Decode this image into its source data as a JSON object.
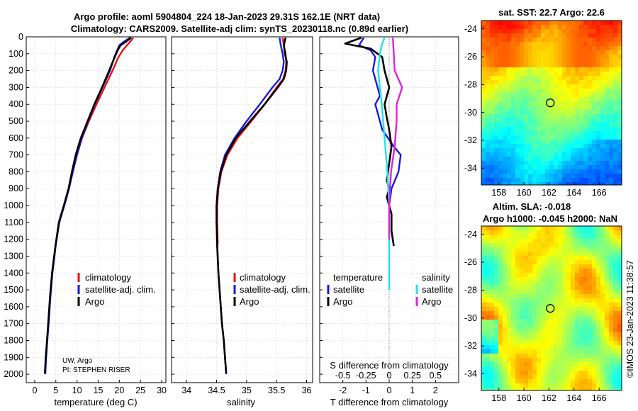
{
  "title": {
    "line1": "Argo profile: aoml 5904804_224 18-Jan-2023 29.31S 162.1E (NRT data)",
    "line2": "Climatology: CARS2009. Satellite-adj clim: synTS_20230118.nc (0.89d earlier)"
  },
  "credit": {
    "org": "UW, Argo",
    "pi": "PI: STEPHEN RISER"
  },
  "watermark": "©IMOS 23-Jan-2023 11:38:57",
  "colors": {
    "climatology": "#e81010",
    "satellite": "#1818dd",
    "argo": "#000000",
    "cyan": "#22e0e8",
    "magenta": "#e020e0"
  },
  "chart_data": [
    {
      "id": "temperature",
      "type": "line",
      "xlabel": "temperature (deg C)",
      "ylabel": "",
      "xlim": [
        -2,
        31
      ],
      "ylim": [
        2050,
        0
      ],
      "xticks": [
        0,
        5,
        10,
        15,
        20,
        25,
        30
      ],
      "yticks": [
        0,
        100,
        200,
        300,
        400,
        500,
        600,
        700,
        800,
        900,
        1000,
        1100,
        1200,
        1300,
        1400,
        1500,
        1600,
        1700,
        1800,
        1900,
        2000
      ],
      "legend": [
        "climatology",
        "satellite-adj. clim.",
        "Argo"
      ],
      "series": [
        {
          "name": "climatology",
          "color": "#e81010",
          "x": [
            23.3,
            22.5,
            21.8,
            20.8,
            19.8,
            18.4,
            16.5,
            14.6,
            12.8,
            11.2,
            10.0,
            9.0,
            8.1,
            7.0,
            5.8,
            5.0
          ],
          "y": [
            5,
            30,
            50,
            80,
            120,
            200,
            300,
            400,
            500,
            600,
            700,
            800,
            900,
            1000,
            1100,
            1230
          ]
        },
        {
          "name": "satellite-adj. clim.",
          "color": "#1818dd",
          "x": [
            22.5,
            21.0,
            20.0,
            19.5,
            18.8,
            17.8,
            16.0,
            14.2,
            12.6,
            11.1,
            10.0,
            9.0,
            8.1,
            7.0,
            5.8,
            5.0,
            4.2,
            3.7,
            3.3,
            3.0,
            2.7,
            2.5
          ],
          "y": [
            5,
            30,
            50,
            80,
            120,
            200,
            300,
            400,
            500,
            600,
            700,
            800,
            900,
            1000,
            1100,
            1230,
            1400,
            1550,
            1700,
            1800,
            1900,
            2000
          ]
        },
        {
          "name": "Argo",
          "color": "#000000",
          "x": [
            22.8,
            21.5,
            20.3,
            19.6,
            18.9,
            17.6,
            15.9,
            14.1,
            12.5,
            10.9,
            9.7,
            8.8,
            8.0,
            6.9,
            5.7,
            4.9,
            4.1,
            3.6,
            3.2,
            2.9,
            2.6,
            2.4
          ],
          "y": [
            5,
            30,
            50,
            80,
            120,
            200,
            300,
            400,
            500,
            600,
            700,
            800,
            900,
            1000,
            1100,
            1240,
            1400,
            1550,
            1700,
            1800,
            1900,
            1995
          ]
        }
      ]
    },
    {
      "id": "salinity",
      "type": "line",
      "xlabel": "salinity",
      "ylabel": "",
      "xlim": [
        33.75,
        36.1
      ],
      "ylim": [
        2050,
        0
      ],
      "xticks": [
        34,
        34.5,
        35,
        35.5,
        36
      ],
      "xtick_labels": [
        "34",
        "34.5",
        "35",
        "35.5",
        "36"
      ],
      "legend": [
        "climatology",
        "satellite-adj. clim.",
        "Argo"
      ],
      "series": [
        {
          "name": "climatology",
          "color": "#e81010",
          "x": [
            35.6,
            35.62,
            35.65,
            35.66,
            35.65,
            35.61,
            35.5,
            35.3,
            35.08,
            34.85,
            34.68,
            34.58,
            34.53,
            34.51,
            34.51,
            34.52
          ],
          "y": [
            5,
            50,
            100,
            150,
            200,
            250,
            300,
            400,
            500,
            600,
            700,
            800,
            900,
            1000,
            1100,
            1230
          ]
        },
        {
          "name": "satellite-adj. clim.",
          "color": "#1818dd",
          "x": [
            35.55,
            35.57,
            35.6,
            35.62,
            35.6,
            35.55,
            35.43,
            35.22,
            35.0,
            34.8,
            34.64,
            34.56,
            34.52,
            34.5,
            34.5,
            34.51,
            34.53,
            34.56,
            34.59,
            34.62,
            34.64,
            34.66
          ],
          "y": [
            5,
            50,
            100,
            150,
            200,
            250,
            300,
            400,
            500,
            600,
            700,
            800,
            900,
            1000,
            1100,
            1230,
            1400,
            1550,
            1700,
            1800,
            1900,
            2000
          ]
        },
        {
          "name": "Argo",
          "color": "#000000",
          "x": [
            35.65,
            35.62,
            35.64,
            35.67,
            35.66,
            35.62,
            35.52,
            35.3,
            35.06,
            34.82,
            34.66,
            34.57,
            34.52,
            34.5,
            34.5,
            34.51,
            34.53,
            34.56,
            34.59,
            34.62,
            34.64,
            34.66
          ],
          "y": [
            5,
            50,
            100,
            150,
            200,
            250,
            300,
            400,
            500,
            600,
            700,
            800,
            900,
            1000,
            1100,
            1240,
            1400,
            1550,
            1700,
            1800,
            1900,
            1995
          ]
        }
      ]
    },
    {
      "id": "difference",
      "type": "line",
      "xlabel": "T difference from climatology",
      "xlabel2": "S difference from climatology",
      "xlim": [
        -3,
        3
      ],
      "ylim": [
        2050,
        0
      ],
      "xticks": [
        -2,
        -1,
        0,
        1,
        2
      ],
      "xtick_labels": [
        "-2",
        "-1",
        "0",
        "1",
        "2"
      ],
      "x2ticks": [
        -0.5,
        -0.25,
        0,
        0.25,
        0.5
      ],
      "x2tick_labels": [
        "-0.5",
        "-0.25",
        "0",
        "0.25",
        "0.5"
      ],
      "legend_titles": {
        "temperature": "temperature",
        "salinity": "salinity"
      },
      "legend": {
        "temperature": [
          "satellite",
          "Argo"
        ],
        "salinity": [
          "satellite",
          "Argo"
        ]
      },
      "series": [
        {
          "name": "temperature satellite",
          "color": "#1818dd",
          "x": [
            -1.1,
            -1.3,
            -0.8,
            -0.6,
            -0.7,
            -0.5,
            -0.4,
            -0.6,
            -0.5,
            -0.3,
            0.2,
            0.5,
            0.4,
            0.1,
            0.0
          ],
          "y": [
            5,
            50,
            80,
            120,
            200,
            300,
            350,
            400,
            450,
            550,
            650,
            700,
            800,
            900,
            1000
          ]
        },
        {
          "name": "temperature Argo",
          "color": "#000000",
          "x": [
            -1.2,
            -1.9,
            -0.8,
            -0.3,
            -0.2,
            0.0,
            -0.2,
            -0.1,
            0.0,
            0.1,
            0.0,
            -0.1,
            0.0,
            -0.1,
            0.0,
            0.1,
            0.1,
            0.2
          ],
          "y": [
            5,
            40,
            70,
            120,
            200,
            300,
            400,
            480,
            550,
            650,
            750,
            850,
            900,
            950,
            1000,
            1050,
            1150,
            1240
          ]
        },
        {
          "name": "salinity satellite",
          "color": "#22e0e8",
          "x": [
            -0.05,
            -0.08,
            -0.1,
            -0.12,
            -0.08,
            -0.05,
            -0.02,
            0.0,
            0.0,
            0.0
          ],
          "y": [
            5,
            50,
            100,
            200,
            400,
            600,
            800,
            1000,
            1200,
            1500
          ]
        },
        {
          "name": "salinity Argo",
          "color": "#e020e0",
          "x": [
            0.04,
            0.05,
            0.06,
            0.14,
            0.08,
            0.08,
            0.06,
            0.02,
            0.0,
            0.0
          ],
          "y": [
            5,
            100,
            200,
            300,
            400,
            500,
            650,
            800,
            1000,
            1200
          ]
        }
      ]
    },
    {
      "id": "sst-map",
      "type": "heatmap",
      "title": "sat. SST: 22.7 Argo: 22.6",
      "xticks": [
        158,
        160,
        162,
        164,
        166
      ],
      "yticks": [
        -24,
        -26,
        -28,
        -30,
        -32,
        -34
      ],
      "xlim": [
        156.6,
        167.8
      ],
      "ylim": [
        -35.2,
        -23.4
      ],
      "marker": {
        "lon": 162.1,
        "lat": -29.31
      }
    },
    {
      "id": "sla-map",
      "type": "heatmap",
      "title": "Altim. SLA: -0.018",
      "subtitle": "Argo h1000: -0.045 h2000: NaN",
      "xticks": [
        158,
        160,
        162,
        164,
        166
      ],
      "yticks": [
        -24,
        -26,
        -28,
        -30,
        -32,
        -34
      ],
      "xlim": [
        156.6,
        167.8
      ],
      "ylim": [
        -35.2,
        -23.4
      ],
      "marker": {
        "lon": 162.1,
        "lat": -29.31
      }
    }
  ]
}
